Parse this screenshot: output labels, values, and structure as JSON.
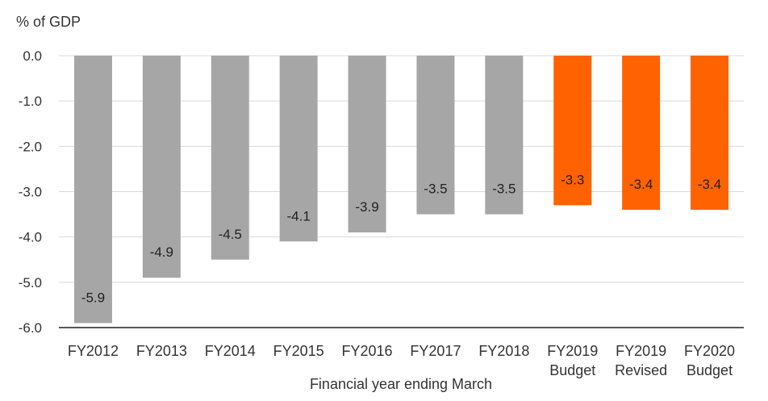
{
  "chart_data": {
    "type": "bar",
    "ylabel": "% of GDP",
    "xlabel": "Financial year ending March",
    "ylim": [
      -6.0,
      0.0
    ],
    "yticks": [
      "0.0",
      "-1.0",
      "-2.0",
      "-3.0",
      "-4.0",
      "-5.0",
      "-6.0"
    ],
    "ytick_values": [
      0,
      -1,
      -2,
      -3,
      -4,
      -5,
      -6
    ],
    "grid": true,
    "categories": [
      [
        "FY2012"
      ],
      [
        "FY2013"
      ],
      [
        "FY2014"
      ],
      [
        "FY2015"
      ],
      [
        "FY2016"
      ],
      [
        "FY2017"
      ],
      [
        "FY2018"
      ],
      [
        "FY2019",
        "Budget"
      ],
      [
        "FY2019",
        "Revised"
      ],
      [
        "FY2020",
        "Budget"
      ]
    ],
    "values": [
      -5.9,
      -4.9,
      -4.5,
      -4.1,
      -3.9,
      -3.5,
      -3.5,
      -3.3,
      -3.4,
      -3.4
    ],
    "value_labels": [
      "-5.9",
      "-4.9",
      "-4.5",
      "-4.1",
      "-3.9",
      "-3.5",
      "-3.5",
      "-3.3",
      "-3.4",
      "-3.4"
    ],
    "bar_colors": [
      "#a6a6a6",
      "#a6a6a6",
      "#a6a6a6",
      "#a6a6a6",
      "#a6a6a6",
      "#a6a6a6",
      "#a6a6a6",
      "#ff6200",
      "#ff6200",
      "#ff6200"
    ]
  }
}
